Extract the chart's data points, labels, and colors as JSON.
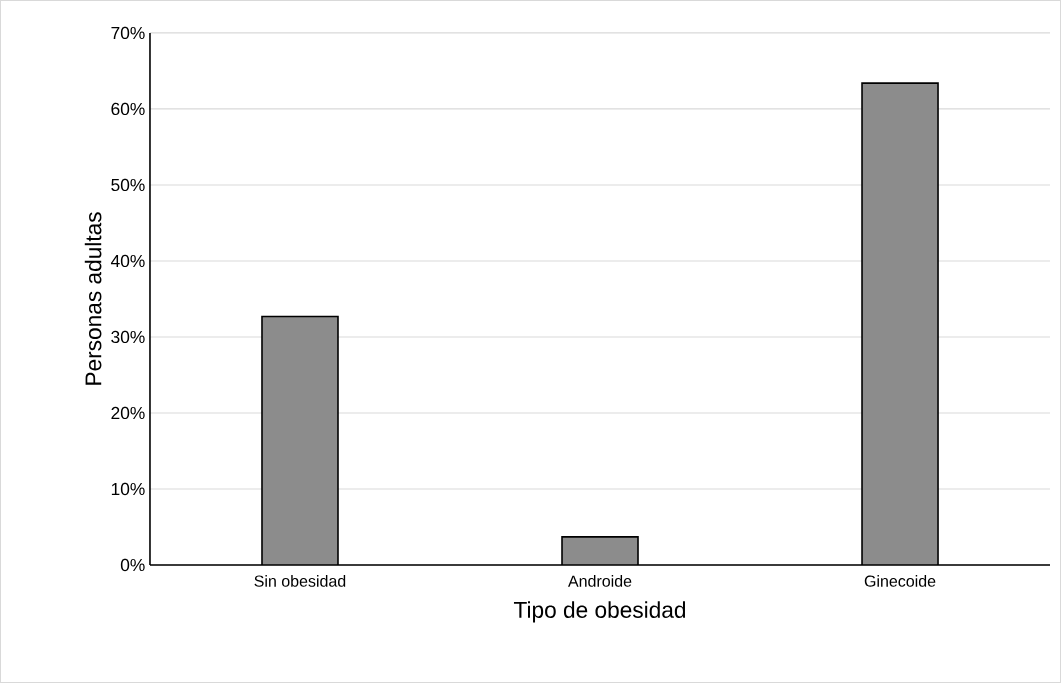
{
  "chart_data": {
    "type": "bar",
    "xlabel": "Tipo de obesidad",
    "ylabel": "Personas adultas",
    "categories": [
      "Sin obesidad",
      "Androide",
      "Ginecoide"
    ],
    "values": [
      32.7,
      3.7,
      63.4
    ],
    "color": "#8c8c8c",
    "ylim": [
      0,
      70
    ],
    "yticks": [
      {
        "value": 0,
        "label": "0%"
      },
      {
        "value": 10,
        "label": "10%"
      },
      {
        "value": 20,
        "label": "20%"
      },
      {
        "value": 30,
        "label": "30%"
      },
      {
        "value": 40,
        "label": "40%"
      },
      {
        "value": 50,
        "label": "50%"
      },
      {
        "value": 60,
        "label": "60%"
      },
      {
        "value": 70,
        "label": "70%"
      }
    ],
    "grid": "y"
  }
}
